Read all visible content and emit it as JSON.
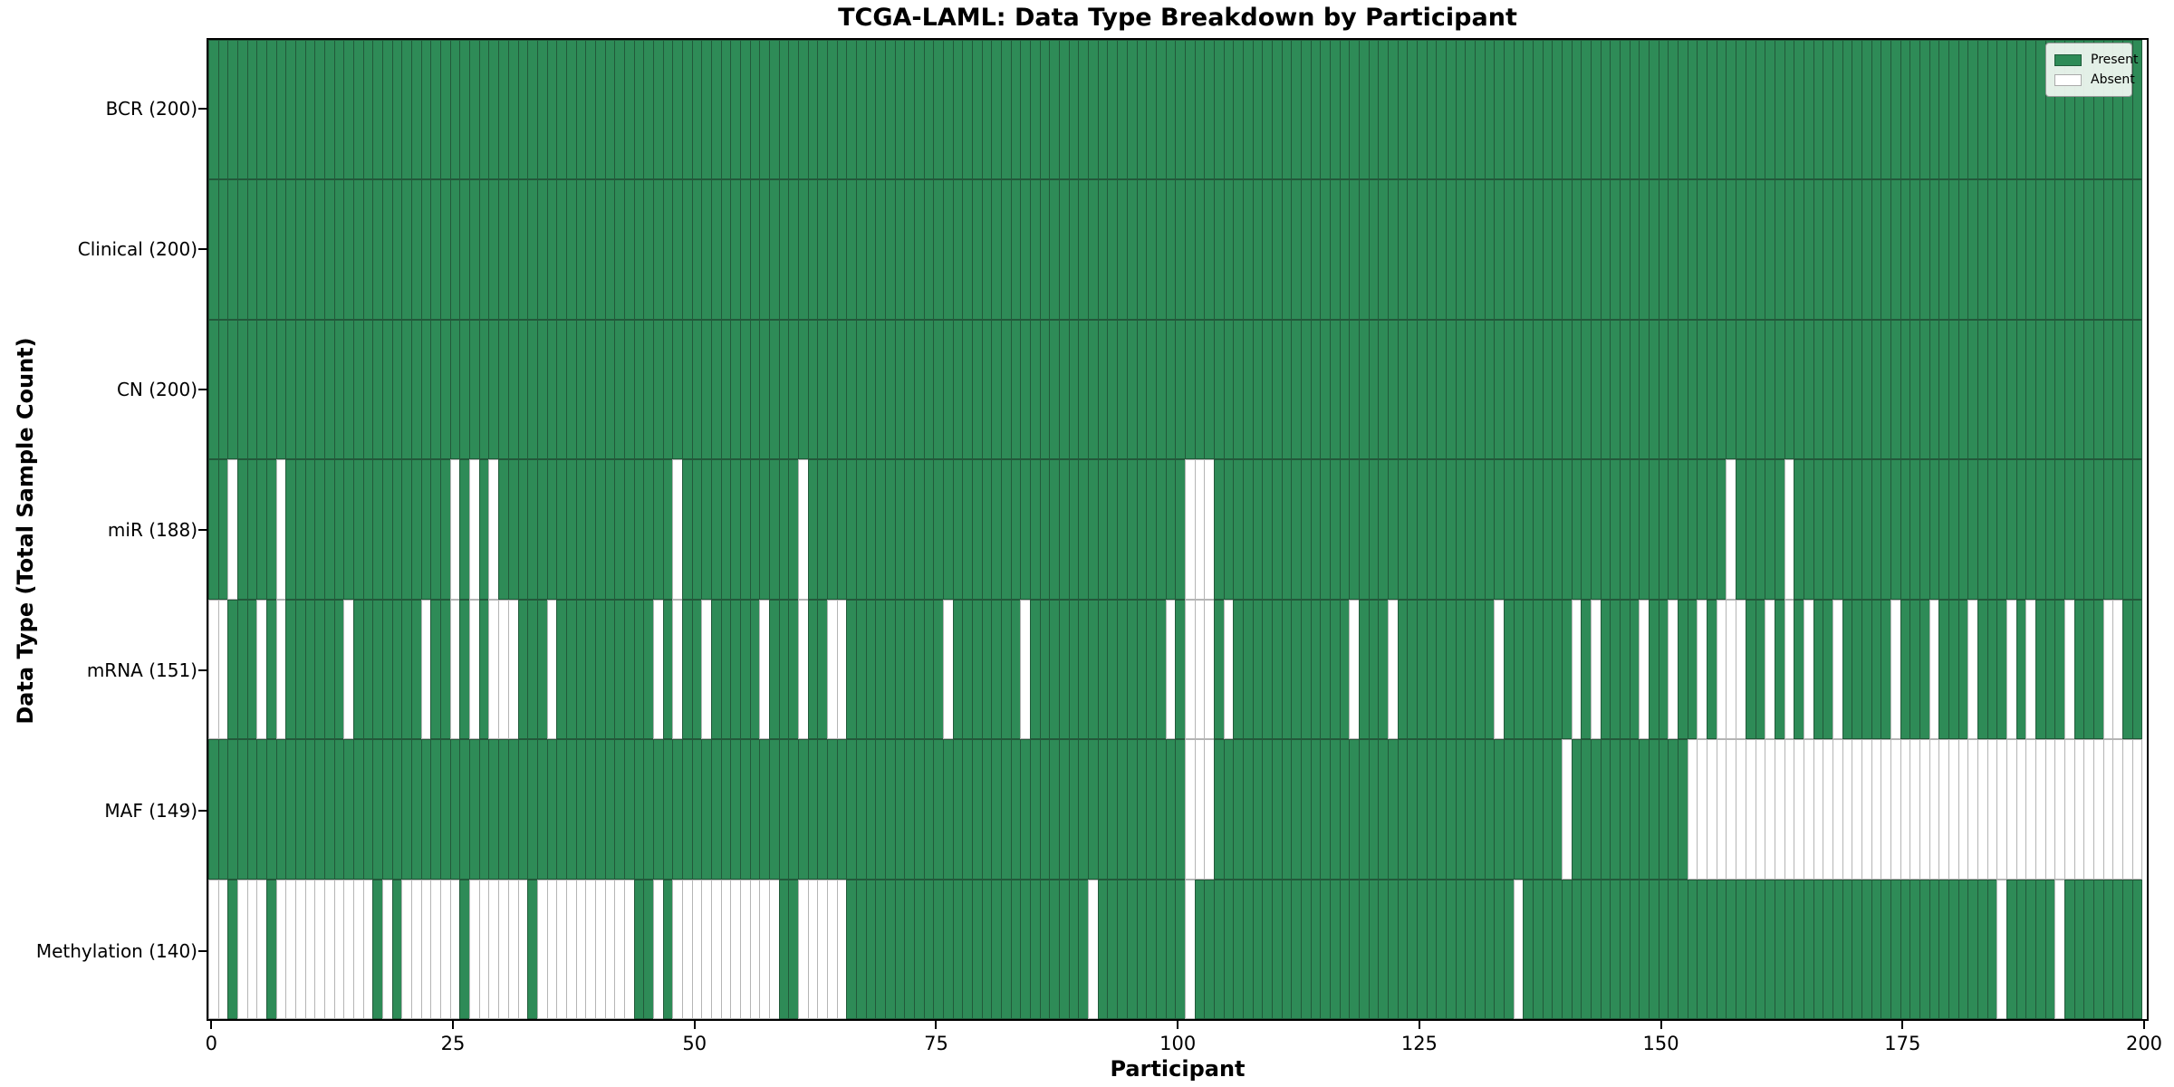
{
  "title": "TCGA-LAML: Data Type Breakdown by Participant",
  "chart_data": {
    "type": "heatmap",
    "title": "TCGA-LAML: Data Type Breakdown by Participant",
    "xlabel": "Participant",
    "ylabel": "Data Type (Total Sample Count)",
    "x_ticks": [
      0,
      25,
      50,
      75,
      100,
      125,
      150,
      175,
      200
    ],
    "n_participants": 200,
    "legend_position": "upper right",
    "legend": {
      "present_label": "Present",
      "absent_label": "Absent"
    },
    "colors": {
      "present": "#2e8b57",
      "absent": "#ffffff",
      "cell_edge": "#3a3a3a",
      "spine": "#000000"
    },
    "rows": [
      {
        "label": "BCR (200)",
        "data_type": "BCR",
        "present_count": 200,
        "absent_participants": []
      },
      {
        "label": "Clinical (200)",
        "data_type": "Clinical",
        "present_count": 200,
        "absent_participants": []
      },
      {
        "label": "CN (200)",
        "data_type": "CN",
        "present_count": 200,
        "absent_participants": []
      },
      {
        "label": "miR (188)",
        "data_type": "miR",
        "present_count": 188,
        "absent_participants": [
          2,
          7,
          25,
          27,
          29,
          48,
          61,
          101,
          102,
          103,
          157,
          163
        ]
      },
      {
        "label": "mRNA (151)",
        "data_type": "mRNA",
        "present_count": 151,
        "absent_participants": [
          0,
          1,
          5,
          7,
          14,
          22,
          25,
          27,
          29,
          30,
          31,
          35,
          46,
          48,
          51,
          57,
          61,
          64,
          65,
          76,
          84,
          99,
          101,
          102,
          103,
          105,
          118,
          122,
          133,
          141,
          143,
          148,
          151,
          154,
          156,
          157,
          158,
          161,
          163,
          165,
          168,
          174,
          178,
          182,
          186,
          188,
          192,
          196,
          197
        ]
      },
      {
        "label": "MAF (149)",
        "data_type": "MAF",
        "present_count": 149,
        "absent_participants": [
          101,
          102,
          103,
          140,
          153,
          154,
          155,
          156,
          157,
          158,
          159,
          160,
          161,
          162,
          163,
          164,
          165,
          166,
          167,
          168,
          169,
          170,
          171,
          172,
          173,
          174,
          175,
          176,
          177,
          178,
          179,
          180,
          181,
          182,
          183,
          184,
          185,
          186,
          187,
          188,
          189,
          190,
          191,
          192,
          193,
          194,
          195,
          196,
          197,
          198,
          199
        ]
      },
      {
        "label": "Methylation (140)",
        "data_type": "Methylation",
        "present_count": 140,
        "absent_participants": [
          0,
          1,
          3,
          4,
          5,
          7,
          8,
          9,
          10,
          11,
          12,
          13,
          14,
          15,
          16,
          18,
          20,
          21,
          22,
          23,
          24,
          25,
          27,
          28,
          29,
          30,
          31,
          32,
          34,
          35,
          36,
          37,
          38,
          39,
          40,
          41,
          42,
          43,
          46,
          48,
          49,
          50,
          51,
          52,
          53,
          54,
          55,
          56,
          57,
          58,
          61,
          62,
          63,
          64,
          65,
          91,
          101,
          135,
          185,
          191
        ]
      }
    ]
  }
}
